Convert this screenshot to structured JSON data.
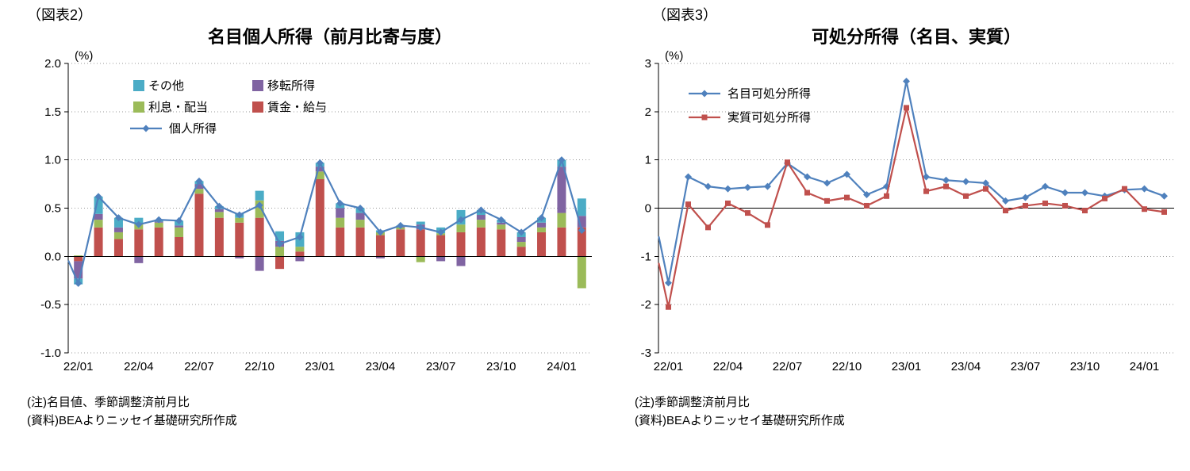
{
  "page": {
    "background": "#FFFFFF"
  },
  "colors": {
    "blue_line": "#4F81BD",
    "red": "#C0504D",
    "green": "#9BBB59",
    "purple": "#8064A2",
    "cyan": "#4BACC6",
    "gridline": "#9A9A9A",
    "axis": "#000000"
  },
  "figure2": {
    "label": "（図表2）",
    "title": "名目個人所得（前月比寄与度）",
    "unit": "(%)",
    "note1": "(注)名目値、季節調整済前月比",
    "note2": "(資料)BEAよりニッセイ基礎研究所作成"
  },
  "figure3": {
    "label": "（図表3）",
    "title": "可処分所得（名目、実質）",
    "unit": "(%)",
    "note1": "(注)季節調整済前月比",
    "note2": "(資料)BEAよりニッセイ基礎研究所作成"
  },
  "chart_data": [
    {
      "type": "stacked-bar+line",
      "title": "名目個人所得（前月比寄与度）",
      "ylabel": "(%)",
      "ylim": [
        -1.0,
        2.0
      ],
      "yticks": [
        2.0,
        1.5,
        1.0,
        0.5,
        0.0,
        -0.5,
        -1.0
      ],
      "ytick_labels": [
        "2.0",
        "1.5",
        "1.0",
        "0.5",
        "0.0",
        "-0.5",
        "-1.0"
      ],
      "grid": "dotted-horizontal",
      "legend_position": "inside-top-left",
      "categories": [
        "22/01",
        "22/02",
        "22/03",
        "22/04",
        "22/05",
        "22/06",
        "22/07",
        "22/08",
        "22/09",
        "22/10",
        "22/11",
        "22/12",
        "23/01",
        "23/02",
        "23/03",
        "23/04",
        "23/05",
        "23/06",
        "23/07",
        "23/08",
        "23/09",
        "23/10",
        "23/11",
        "23/12",
        "24/01",
        "24/02"
      ],
      "xtick_indices": [
        0,
        3,
        6,
        9,
        12,
        15,
        18,
        21,
        24
      ],
      "xtick_labels": [
        "22/01",
        "22/04",
        "22/07",
        "22/10",
        "23/01",
        "23/04",
        "23/07",
        "23/10",
        "24/01"
      ],
      "bar_series": [
        {
          "id": "wage-salary",
          "name": "賃金・給与",
          "color": "#C0504D",
          "values": [
            -0.05,
            0.3,
            0.18,
            0.28,
            0.3,
            0.2,
            0.65,
            0.4,
            0.35,
            0.4,
            -0.13,
            0.05,
            0.8,
            0.3,
            0.3,
            0.22,
            0.28,
            0.28,
            0.22,
            0.25,
            0.3,
            0.28,
            0.1,
            0.25,
            0.3,
            0.3
          ]
        },
        {
          "id": "interest-dividend",
          "name": "利息・配当",
          "color": "#9BBB59",
          "values": [
            0.01,
            0.08,
            0.07,
            0.06,
            0.05,
            0.1,
            0.05,
            0.06,
            0.05,
            0.18,
            0.1,
            0.05,
            0.08,
            0.1,
            0.08,
            0.03,
            0.02,
            -0.06,
            0.02,
            0.08,
            0.08,
            0.05,
            0.05,
            0.05,
            0.15,
            -0.33
          ]
        },
        {
          "id": "transfer-income",
          "name": "移転所得",
          "color": "#8064A2",
          "values": [
            -0.18,
            0.06,
            0.05,
            -0.07,
            0.01,
            0.02,
            0.05,
            0.03,
            -0.02,
            -0.15,
            0.06,
            -0.05,
            0.05,
            0.1,
            0.07,
            -0.02,
            0.01,
            0.05,
            -0.05,
            -0.1,
            0.05,
            0.02,
            0.05,
            0.05,
            0.48,
            0.12
          ]
        },
        {
          "id": "other",
          "name": "その他",
          "color": "#4BACC6",
          "values": [
            -0.06,
            0.18,
            0.1,
            0.06,
            0.02,
            0.05,
            0.03,
            0.03,
            0.05,
            0.1,
            0.1,
            0.15,
            0.04,
            0.05,
            0.05,
            0.02,
            0.01,
            0.03,
            0.06,
            0.15,
            0.05,
            0.03,
            0.05,
            0.05,
            0.07,
            0.18
          ]
        }
      ],
      "line_series": [
        {
          "id": "personal-income",
          "name": "個人所得",
          "color": "#4F81BD",
          "marker": "diamond",
          "edge": -0.05,
          "values": [
            -0.28,
            0.62,
            0.4,
            0.33,
            0.38,
            0.37,
            0.78,
            0.52,
            0.43,
            0.53,
            0.13,
            0.2,
            0.97,
            0.55,
            0.5,
            0.25,
            0.32,
            0.3,
            0.25,
            0.38,
            0.48,
            0.38,
            0.25,
            0.4,
            1.0,
            0.27
          ]
        }
      ],
      "legend": [
        {
          "label": "その他",
          "color": "#4BACC6",
          "shape": "box"
        },
        {
          "label": "移転所得",
          "color": "#8064A2",
          "shape": "box"
        },
        {
          "label": "利息・配当",
          "color": "#9BBB59",
          "shape": "box"
        },
        {
          "label": "賃金・給与",
          "color": "#C0504D",
          "shape": "box"
        },
        {
          "label": "個人所得",
          "color": "#4F81BD",
          "shape": "line-diamond"
        }
      ]
    },
    {
      "type": "line",
      "title": "可処分所得（名目、実質）",
      "ylabel": "(%)",
      "ylim": [
        -3,
        3
      ],
      "yticks": [
        3,
        2,
        1,
        0,
        -1,
        -2,
        -3
      ],
      "ytick_labels": [
        "3",
        "2",
        "1",
        "0",
        "-1",
        "-2",
        "-3"
      ],
      "grid": "dotted-horizontal",
      "legend_position": "inside-top-left",
      "categories": [
        "22/01",
        "22/02",
        "22/03",
        "22/04",
        "22/05",
        "22/06",
        "22/07",
        "22/08",
        "22/09",
        "22/10",
        "22/11",
        "22/12",
        "23/01",
        "23/02",
        "23/03",
        "23/04",
        "23/05",
        "23/06",
        "23/07",
        "23/08",
        "23/09",
        "23/10",
        "23/11",
        "23/12",
        "24/01",
        "24/02"
      ],
      "xtick_indices": [
        0,
        3,
        6,
        9,
        12,
        15,
        18,
        21,
        24
      ],
      "xtick_labels": [
        "22/01",
        "22/04",
        "22/07",
        "22/10",
        "23/01",
        "23/04",
        "23/07",
        "23/10",
        "24/01"
      ],
      "line_series": [
        {
          "id": "nominal-disposable-income",
          "name": "名目可処分所得",
          "color": "#4F81BD",
          "marker": "diamond",
          "edge": -0.6,
          "values": [
            -1.55,
            0.65,
            0.45,
            0.4,
            0.43,
            0.45,
            0.93,
            0.65,
            0.52,
            0.7,
            0.28,
            0.45,
            2.63,
            0.65,
            0.58,
            0.55,
            0.52,
            0.15,
            0.22,
            0.45,
            0.32,
            0.32,
            0.25,
            0.38,
            0.4,
            0.25
          ]
        },
        {
          "id": "real-disposable-income",
          "name": "実質可処分所得",
          "color": "#C0504D",
          "marker": "square",
          "edge": -1.15,
          "values": [
            -2.05,
            0.08,
            -0.4,
            0.1,
            -0.1,
            -0.35,
            0.95,
            0.32,
            0.15,
            0.22,
            0.05,
            0.25,
            2.08,
            0.35,
            0.45,
            0.25,
            0.4,
            -0.05,
            0.05,
            0.1,
            0.05,
            -0.05,
            0.2,
            0.4,
            -0.02,
            -0.08
          ]
        }
      ],
      "legend": [
        {
          "label": "名目可処分所得",
          "color": "#4F81BD",
          "shape": "line-diamond"
        },
        {
          "label": "実質可処分所得",
          "color": "#C0504D",
          "shape": "line-square"
        }
      ]
    }
  ]
}
